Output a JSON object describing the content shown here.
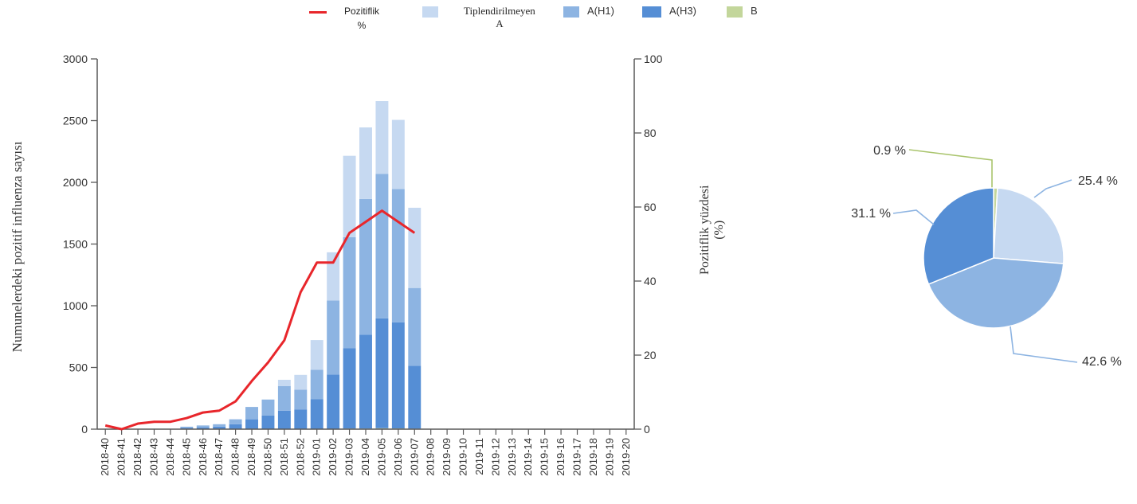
{
  "legend": {
    "line_label_1": "Pozitiflik",
    "line_label_2": "%",
    "unk_label_1": "Tiplendirilmeyen",
    "unk_label_2": "A",
    "h1_label": "A(H1)",
    "h3_label": "A(H3)",
    "b_label": "B"
  },
  "axes": {
    "left_title": "Numunelerdeki pozitif influenza sayısı",
    "right_title_1": "Pozitiflik yüzdesi",
    "right_title_2": "(%)"
  },
  "colors": {
    "positivity_line": "#e8262b",
    "untyped_A": "#c6d9f1",
    "A_H1": "#8db4e2",
    "A_H3": "#558ed5",
    "B": "#c3d69b",
    "axis": "#595959"
  },
  "chart_data": [
    {
      "type": "bar",
      "stacked": true,
      "categories": [
        "2018-40",
        "2018-41",
        "2018-42",
        "2018-43",
        "2018-44",
        "2018-45",
        "2018-46",
        "2018-47",
        "2018-48",
        "2018-49",
        "2018-50",
        "2018-51",
        "2018-52",
        "2019-01",
        "2019-02",
        "2019-03",
        "2019-04",
        "2019-05",
        "2019-06",
        "2019-07",
        "2019-08",
        "2019-09",
        "2019-10",
        "2019-11",
        "2019-12",
        "2019-13",
        "2019-14",
        "2019-15",
        "2019-16",
        "2019-17",
        "2019-18",
        "2019-19",
        "2019-20"
      ],
      "series": [
        {
          "name": "B",
          "axis": "left",
          "values": [
            0,
            0,
            0,
            0,
            0,
            0,
            0,
            0,
            0,
            0,
            0,
            0,
            0,
            2,
            3,
            5,
            5,
            8,
            6,
            4,
            0,
            0,
            0,
            0,
            0,
            0,
            0,
            0,
            0,
            0,
            0,
            0,
            0
          ]
        },
        {
          "name": "A(H3)",
          "axis": "left",
          "values": [
            0,
            0,
            0,
            0,
            0,
            10,
            15,
            20,
            40,
            80,
            110,
            150,
            160,
            240,
            440,
            650,
            760,
            890,
            860,
            510,
            0,
            0,
            0,
            0,
            0,
            0,
            0,
            0,
            0,
            0,
            0,
            0,
            0
          ]
        },
        {
          "name": "A(H1)",
          "axis": "left",
          "values": [
            0,
            0,
            0,
            0,
            0,
            10,
            15,
            20,
            40,
            100,
            130,
            200,
            160,
            240,
            600,
            900,
            1100,
            1170,
            1080,
            630,
            0,
            0,
            0,
            0,
            0,
            0,
            0,
            0,
            0,
            0,
            0,
            0,
            0
          ]
        },
        {
          "name": "Tiplendirilmeyen A",
          "axis": "left",
          "values": [
            0,
            0,
            0,
            0,
            0,
            0,
            0,
            0,
            0,
            0,
            0,
            50,
            120,
            240,
            390,
            660,
            580,
            590,
            560,
            650,
            0,
            0,
            0,
            0,
            0,
            0,
            0,
            0,
            0,
            0,
            0,
            0,
            0
          ]
        },
        {
          "name": "Pozitiflik %",
          "type": "line",
          "axis": "right",
          "values": [
            1,
            0,
            1.5,
            2,
            2,
            3,
            4.5,
            5,
            7.5,
            13,
            18,
            24,
            37,
            45,
            45,
            53,
            56,
            59,
            56,
            53,
            null,
            null,
            null,
            null,
            null,
            null,
            null,
            null,
            null,
            null,
            null,
            null,
            null
          ]
        }
      ],
      "ylim": [
        0,
        3000
      ],
      "yticks": [
        0,
        500,
        1000,
        1500,
        2000,
        2500,
        3000
      ],
      "y2lim": [
        0,
        100
      ],
      "y2ticks": [
        0,
        20,
        40,
        60,
        80,
        100
      ],
      "xlabel": "",
      "ylabel": "Numunelerdeki pozitif influenza sayısı",
      "y2label": "Pozitiflik yüzdesi (%)",
      "legend_position": "top"
    },
    {
      "type": "pie",
      "slices": [
        {
          "name": "B",
          "value": 0.9,
          "label": "0.9 %"
        },
        {
          "name": "Tiplendirilmeyen A",
          "value": 25.4,
          "label": "25.4 %"
        },
        {
          "name": "A(H1)",
          "value": 42.6,
          "label": "42.6 %"
        },
        {
          "name": "A(H3)",
          "value": 31.1,
          "label": "31.1 %"
        }
      ]
    }
  ]
}
